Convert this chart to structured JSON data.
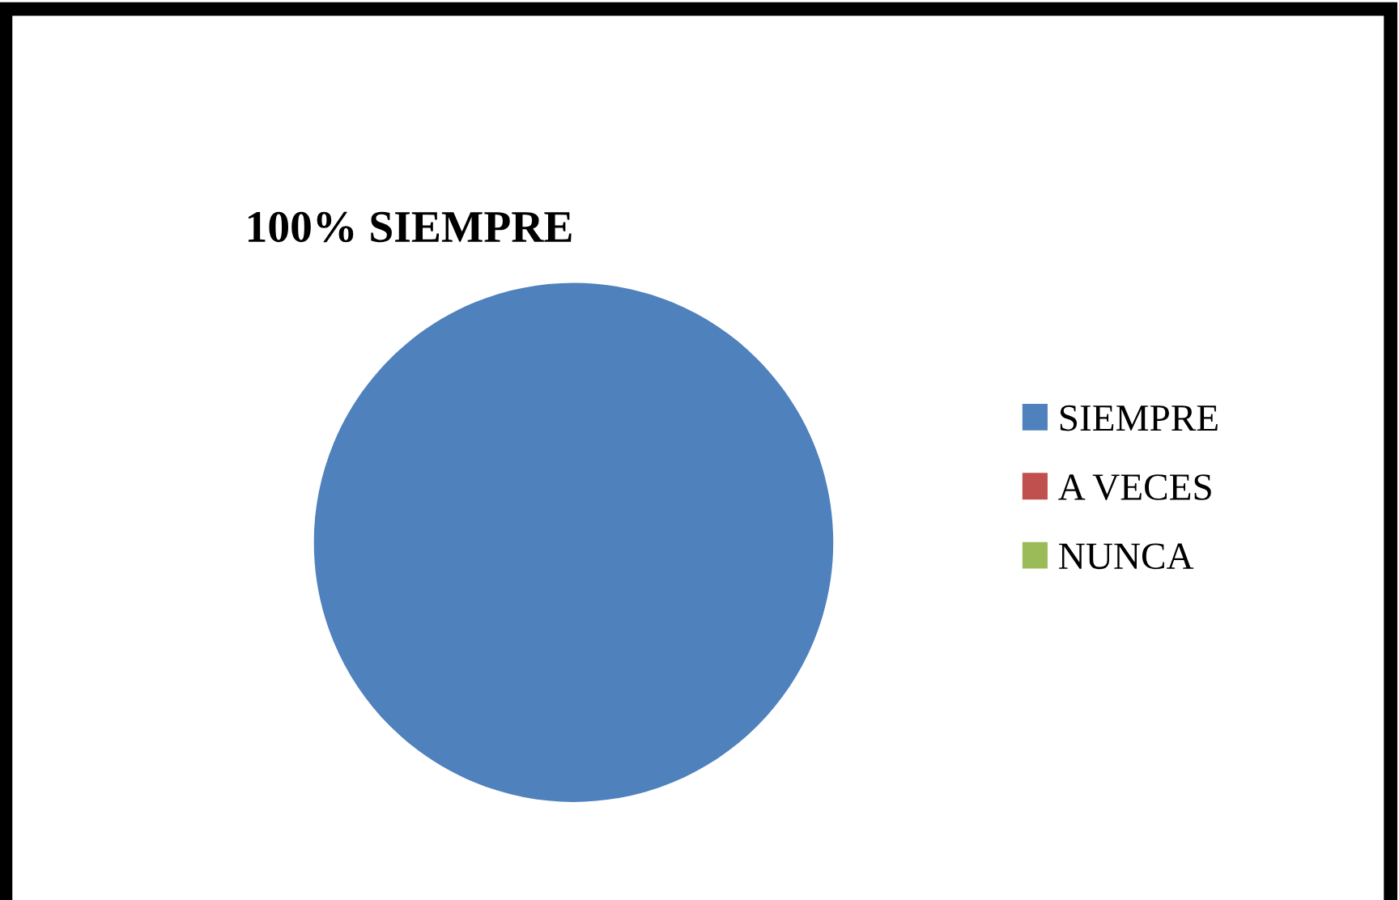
{
  "chart_data": {
    "type": "pie",
    "categories": [
      "SIEMPRE",
      "A VECES",
      "NUNCA"
    ],
    "values": [
      100,
      0,
      0
    ],
    "colors": [
      "#4f81bd",
      "#c0504d",
      "#9bbb59"
    ],
    "value_labels": [
      "100% SIEMPRE",
      null,
      null
    ],
    "legend": "right"
  }
}
